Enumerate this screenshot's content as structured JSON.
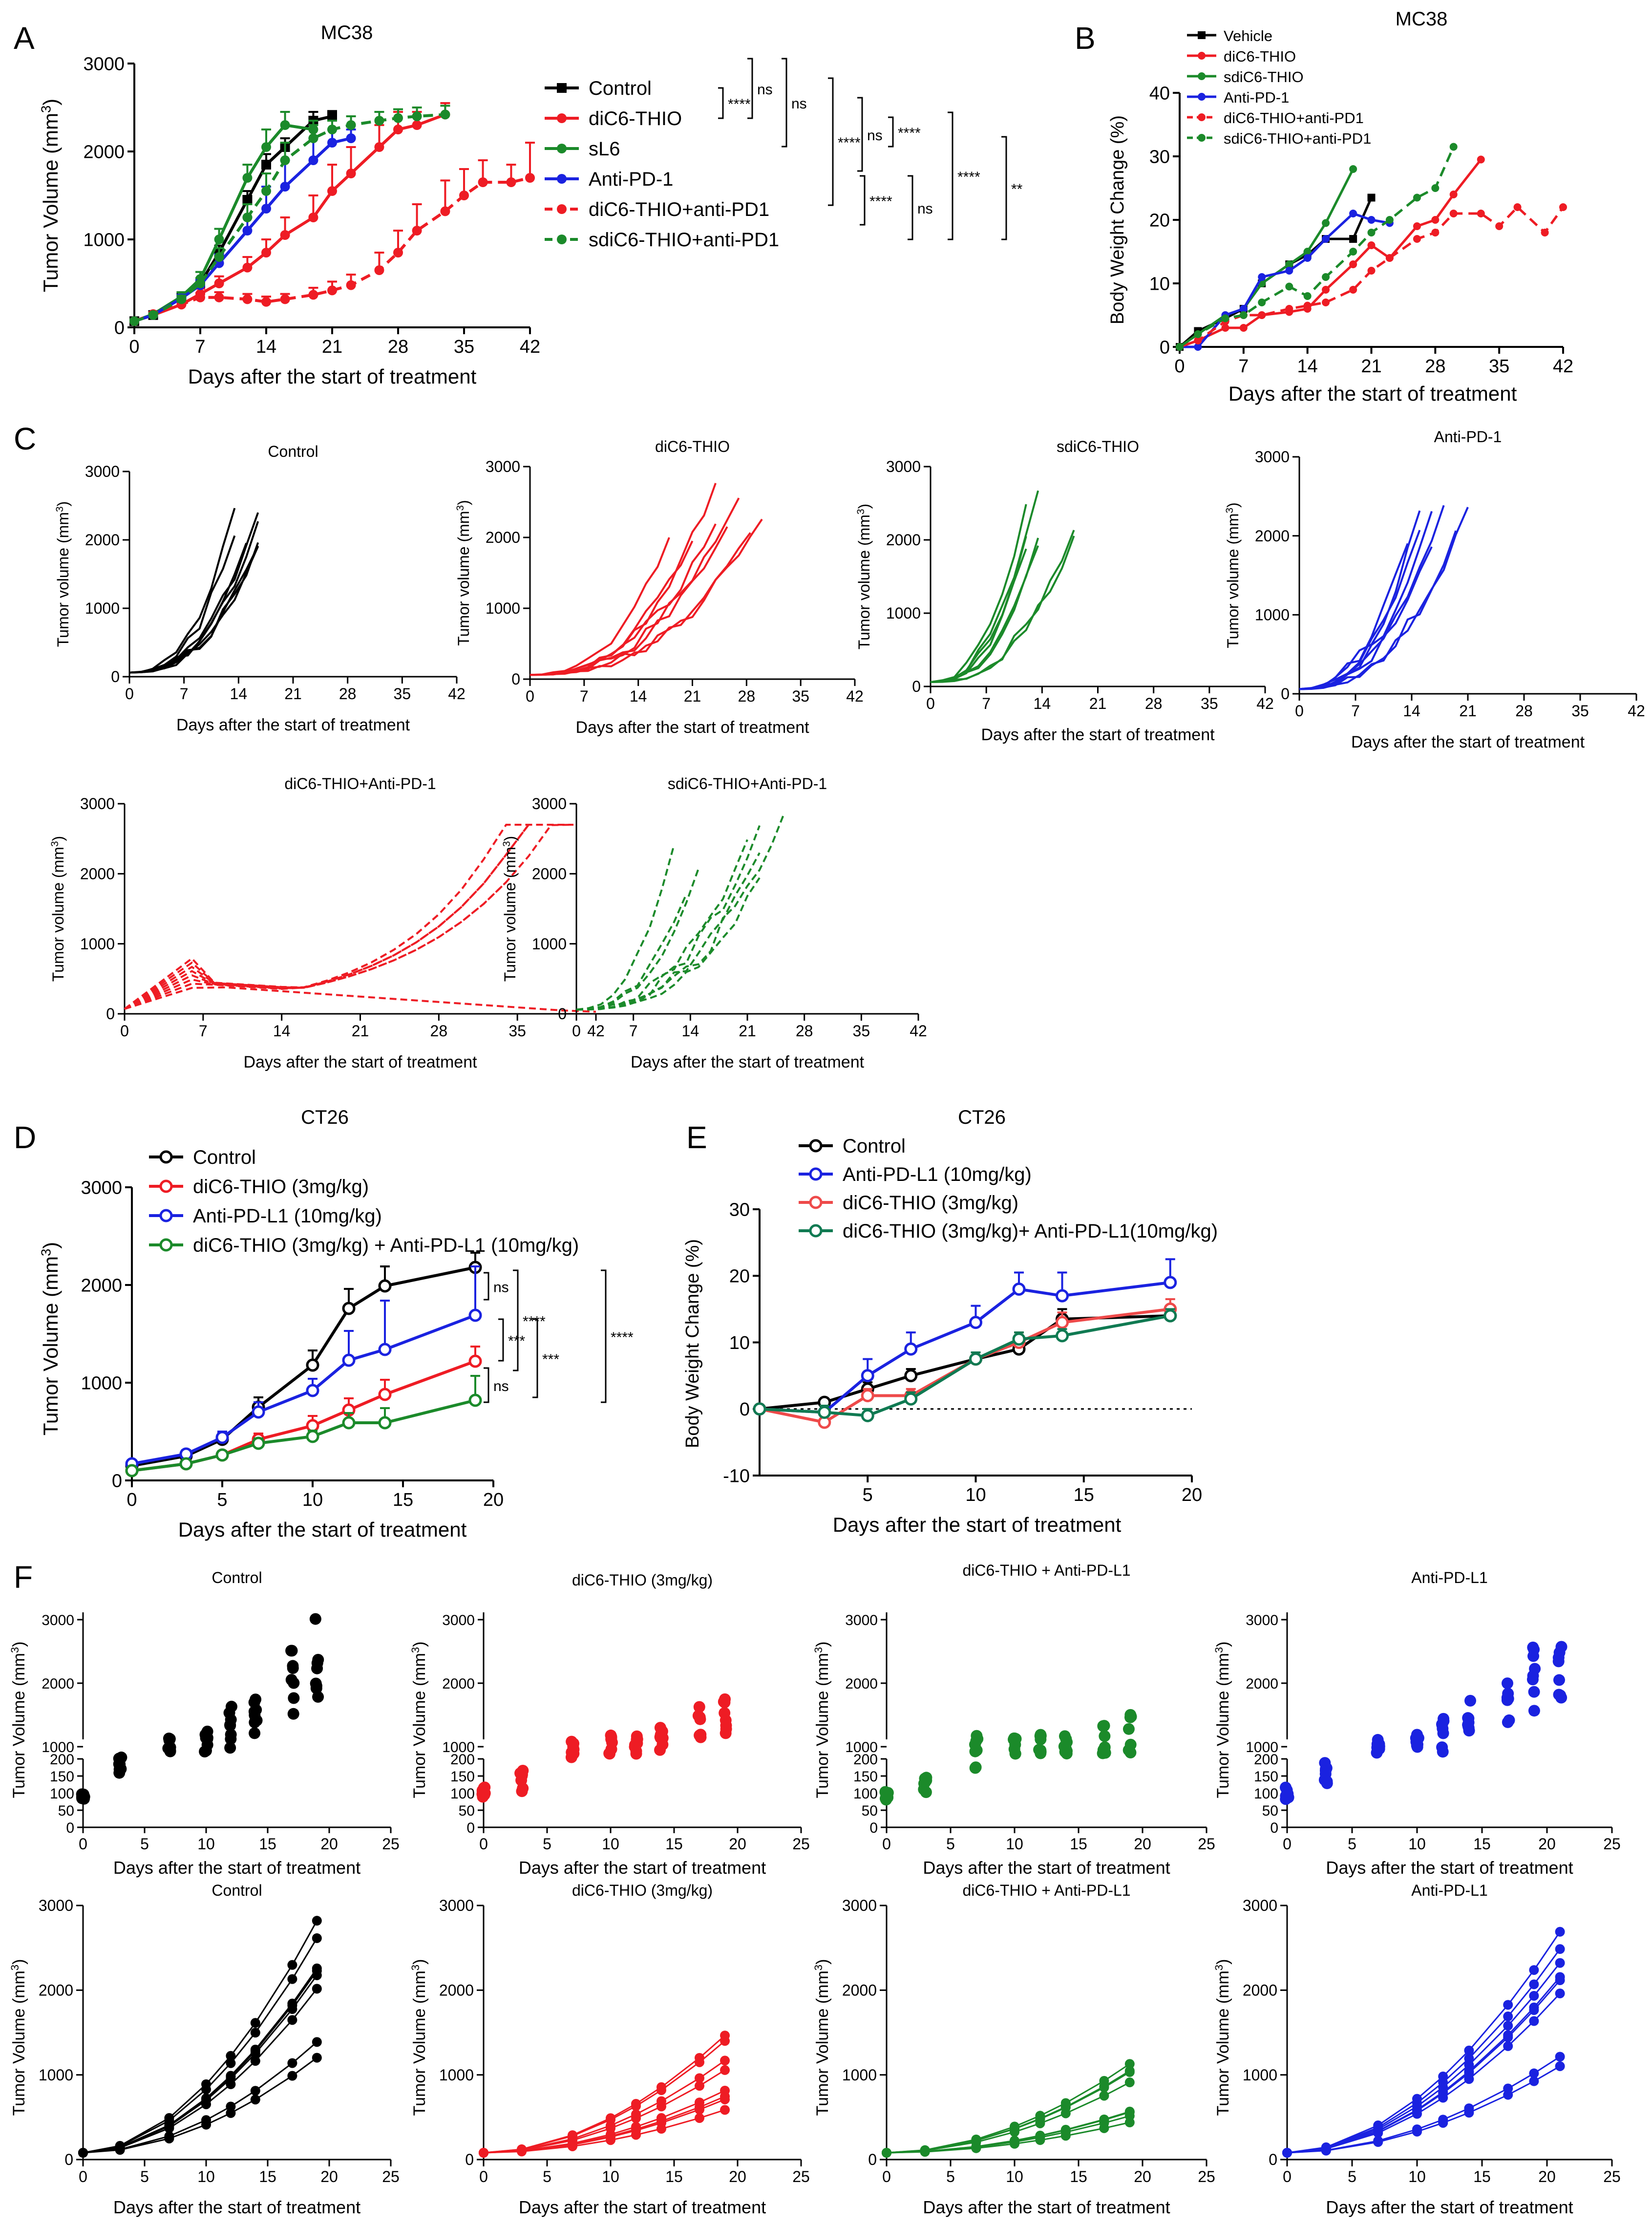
{
  "colors": {
    "black": "#000000",
    "red": "#ee1c24",
    "green": "#1b8a2a",
    "blue": "#1a22e0",
    "teal": "#107a52",
    "lightred": "#ee4a4a"
  },
  "common": {
    "xlabel": "Days after the start of treatment"
  },
  "chart_data": [
    {
      "panel": "A",
      "type": "line",
      "title": "MC38",
      "ylabel": "Tumor Volume (mm³)",
      "xlabel": "Days after the start of treatment",
      "xlim": [
        0,
        42
      ],
      "ylim": [
        0,
        3000
      ],
      "xticks": [
        0,
        7,
        14,
        21,
        28,
        35,
        42
      ],
      "yticks": [
        0,
        1000,
        2000,
        3000
      ],
      "series": [
        {
          "name": "Control",
          "color": "#000000",
          "marker": "square",
          "dashed": false,
          "x": [
            0,
            2,
            5,
            7,
            9,
            12,
            14,
            16,
            19,
            21
          ],
          "y": [
            70,
            140,
            340,
            500,
            850,
            1450,
            1850,
            2050,
            2350,
            2400
          ],
          "err": [
            20,
            20,
            40,
            50,
            80,
            100,
            120,
            100,
            100,
            60
          ]
        },
        {
          "name": "diC6-THIO",
          "color": "#ee1c24",
          "marker": "circle",
          "dashed": false,
          "x": [
            0,
            2,
            5,
            7,
            9,
            12,
            14,
            16,
            19,
            21,
            23,
            26,
            28,
            30,
            33
          ],
          "y": [
            70,
            140,
            260,
            380,
            500,
            680,
            850,
            1050,
            1250,
            1550,
            1750,
            2050,
            2250,
            2300,
            2420
          ],
          "err": [
            20,
            20,
            40,
            60,
            80,
            120,
            150,
            200,
            250,
            300,
            300,
            250,
            200,
            150,
            130
          ]
        },
        {
          "name": "sL6",
          "color": "#1b8a2a",
          "marker": "circle",
          "dashed": false,
          "x": [
            0,
            2,
            5,
            7,
            9,
            12,
            14,
            16,
            19
          ],
          "y": [
            70,
            150,
            350,
            550,
            1000,
            1700,
            2050,
            2300,
            2250
          ],
          "err": [
            20,
            20,
            50,
            80,
            120,
            150,
            200,
            150,
            100
          ]
        },
        {
          "name": "Anti-PD-1",
          "color": "#1a22e0",
          "marker": "circle",
          "dashed": false,
          "x": [
            0,
            2,
            5,
            7,
            9,
            12,
            14,
            16,
            19,
            21,
            23
          ],
          "y": [
            70,
            140,
            330,
            480,
            730,
            1100,
            1350,
            1600,
            1900,
            2100,
            2150
          ],
          "err": [
            20,
            20,
            40,
            60,
            100,
            150,
            250,
            300,
            250,
            150,
            100
          ]
        },
        {
          "name": "diC6-THIO+anti-PD1",
          "color": "#ee1c24",
          "marker": "circle",
          "dashed": true,
          "x": [
            0,
            2,
            5,
            7,
            9,
            12,
            14,
            16,
            19,
            21,
            23,
            26,
            28,
            30,
            33,
            35,
            37,
            40,
            42
          ],
          "y": [
            70,
            150,
            260,
            340,
            340,
            320,
            290,
            320,
            370,
            420,
            480,
            650,
            850,
            1100,
            1320,
            1500,
            1650,
            1650,
            1700
          ],
          "err": [
            20,
            20,
            40,
            50,
            60,
            60,
            60,
            60,
            80,
            100,
            120,
            200,
            250,
            300,
            350,
            300,
            250,
            200,
            400
          ]
        },
        {
          "name": "sdiC6-THIO+anti-PD1",
          "color": "#1b8a2a",
          "marker": "circle",
          "dashed": true,
          "x": [
            0,
            2,
            5,
            7,
            9,
            12,
            14,
            16,
            19,
            21,
            23,
            26,
            28,
            30,
            33
          ],
          "y": [
            70,
            140,
            320,
            500,
            800,
            1250,
            1550,
            1900,
            2150,
            2250,
            2300,
            2350,
            2380,
            2400,
            2420
          ],
          "err": [
            20,
            20,
            40,
            60,
            100,
            150,
            200,
            200,
            150,
            100,
            100,
            100,
            100,
            100,
            100
          ]
        }
      ],
      "significance": [
        {
          "label": "****",
          "pair": "Control vs diC6-THIO"
        },
        {
          "label": "ns",
          "pair": "Control vs sL6"
        },
        {
          "label": "ns",
          "pair": "Control vs Anti-PD-1"
        },
        {
          "label": "****",
          "pair": "Control vs diC6-THIO+anti-PD1"
        },
        {
          "label": "ns",
          "pair": "diC6-THIO vs sL6"
        },
        {
          "label": "****",
          "pair": "sL6 vs Anti-PD-1"
        },
        {
          "label": "****",
          "pair": "diC6-THIO vs diC6-THIO+anti-PD1"
        },
        {
          "label": "ns",
          "pair": "Anti-PD-1 vs diC6-THIO+anti-PD1"
        },
        {
          "label": "****",
          "pair": "sL6 vs sdiC6-THIO+anti-PD1"
        },
        {
          "label": "**",
          "pair": "diC6-THIO+anti-PD1 vs sdiC6-THIO+anti-PD1"
        }
      ]
    },
    {
      "panel": "B",
      "type": "line",
      "title": "MC38",
      "ylabel": "Body Weight Change (%)",
      "xlabel": "Days after the start of treatment",
      "xlim": [
        0,
        42
      ],
      "ylim": [
        0,
        40
      ],
      "xticks": [
        0,
        7,
        14,
        21,
        28,
        35,
        42
      ],
      "yticks": [
        0,
        10,
        20,
        30,
        40
      ],
      "series": [
        {
          "name": "Vehicle",
          "color": "#000000",
          "marker": "square",
          "dashed": false,
          "x": [
            0,
            2,
            5,
            7,
            9,
            12,
            14,
            16,
            19,
            21
          ],
          "y": [
            0,
            2.5,
            4.5,
            6,
            10,
            13,
            14.5,
            17,
            17,
            23.5
          ]
        },
        {
          "name": "diC6-THIO",
          "color": "#ee1c24",
          "marker": "circle",
          "dashed": false,
          "x": [
            0,
            2,
            5,
            7,
            9,
            12,
            14,
            16,
            19,
            21,
            23,
            26,
            28,
            30,
            33
          ],
          "y": [
            0,
            1,
            3,
            3,
            5,
            5.5,
            6,
            9,
            13,
            16,
            14,
            19,
            20,
            24,
            29.5
          ]
        },
        {
          "name": "sdiC6-THIO",
          "color": "#1b8a2a",
          "marker": "circle",
          "dashed": false,
          "x": [
            0,
            2,
            5,
            7,
            9,
            12,
            14,
            16,
            19
          ],
          "y": [
            0,
            2,
            5,
            6,
            10,
            13,
            15,
            19.5,
            28
          ]
        },
        {
          "name": "Anti-PD-1",
          "color": "#1a22e0",
          "marker": "circle",
          "dashed": false,
          "x": [
            0,
            2,
            5,
            7,
            9,
            12,
            14,
            16,
            19,
            21,
            23
          ],
          "y": [
            0,
            0,
            5,
            6,
            11,
            12,
            14,
            17,
            21,
            20,
            19.5
          ]
        },
        {
          "name": "diC6-THIO+anti-PD1",
          "color": "#ee1c24",
          "marker": "circle",
          "dashed": true,
          "x": [
            0,
            2,
            5,
            7,
            9,
            12,
            14,
            16,
            19,
            21,
            23,
            26,
            28,
            30,
            33,
            35,
            37,
            40,
            42
          ],
          "y": [
            0,
            1,
            4,
            5,
            5,
            6,
            6.5,
            7,
            9,
            12,
            14,
            17,
            18,
            21,
            21,
            19,
            22,
            18,
            22
          ]
        },
        {
          "name": "sdiC6-THIO+anti-PD1",
          "color": "#1b8a2a",
          "marker": "circle",
          "dashed": true,
          "x": [
            0,
            2,
            5,
            7,
            9,
            12,
            14,
            16,
            19,
            21,
            23,
            26,
            28,
            30
          ],
          "y": [
            0,
            2,
            4.5,
            5,
            7,
            9.5,
            8,
            11,
            15,
            18,
            20,
            23.5,
            25,
            31.5
          ]
        }
      ]
    },
    {
      "panel": "C",
      "type": "line",
      "subtitles": [
        "Control",
        "diC6-THIO",
        "sdiC6-THIO",
        "Anti-PD-1",
        "diC6-THIO+Anti-PD-1",
        "sdiC6-THIO+Anti-PD-1"
      ],
      "ylabel": "Tumor volume (mm³)",
      "xlabel": "Days after the start of treatment",
      "xlim": [
        0,
        42
      ],
      "ylim": [
        0,
        3000
      ],
      "description": "individual mouse tumor growth curves per group"
    },
    {
      "panel": "D",
      "type": "line",
      "title": "CT26",
      "ylabel": "Tumor Volume (mm³)",
      "xlabel": "Days after the start of treatment",
      "xlim": [
        0,
        20
      ],
      "ylim": [
        0,
        3000
      ],
      "xticks": [
        0,
        5,
        10,
        15,
        20
      ],
      "yticks": [
        0,
        1000,
        2000,
        3000
      ],
      "series": [
        {
          "name": "Control",
          "color": "#000000",
          "x": [
            0,
            3,
            5,
            7,
            10,
            12,
            14,
            19
          ],
          "y": [
            150,
            250,
            420,
            750,
            1180,
            1760,
            1990,
            2180
          ],
          "err": [
            30,
            40,
            60,
            100,
            150,
            200,
            200,
            150
          ]
        },
        {
          "name": "diC6-THIO (3mg/kg)",
          "color": "#ee1c24",
          "x": [
            0,
            3,
            5,
            7,
            10,
            12,
            14,
            19
          ],
          "y": [
            100,
            170,
            260,
            420,
            560,
            720,
            880,
            1220
          ],
          "err": [
            20,
            30,
            40,
            60,
            100,
            120,
            150,
            150
          ]
        },
        {
          "name": "Anti-PD-L1 (10mg/kg)",
          "color": "#1a22e0",
          "x": [
            0,
            3,
            5,
            7,
            10,
            12,
            14,
            19
          ],
          "y": [
            170,
            270,
            440,
            700,
            920,
            1230,
            1340,
            1690
          ],
          "err": [
            30,
            40,
            60,
            100,
            120,
            300,
            500,
            500
          ]
        },
        {
          "name": "diC6-THIO (3mg/kg) + Anti-PD-L1 (10mg/kg)",
          "color": "#1b8a2a",
          "x": [
            0,
            3,
            5,
            7,
            10,
            12,
            14,
            19
          ],
          "y": [
            100,
            170,
            260,
            380,
            450,
            590,
            590,
            820
          ],
          "err": [
            20,
            30,
            40,
            50,
            60,
            100,
            150,
            250
          ]
        }
      ],
      "significance": [
        "ns",
        "***",
        "***",
        "****",
        "****",
        "ns"
      ]
    },
    {
      "panel": "E",
      "type": "line",
      "title": "CT26",
      "ylabel": "Body Weight Change (%)",
      "xlabel": "Days after the start of treatment",
      "xlim": [
        0,
        20
      ],
      "ylim": [
        -10,
        30
      ],
      "xticks": [
        5,
        10,
        15,
        20
      ],
      "yticks": [
        -10,
        0,
        10,
        20,
        30
      ],
      "series": [
        {
          "name": "Control",
          "color": "#000000",
          "x": [
            0,
            3,
            5,
            7,
            10,
            12,
            14,
            19
          ],
          "y": [
            0,
            1,
            3,
            5,
            7.5,
            9,
            13.5,
            14
          ],
          "err": [
            0,
            0.5,
            1,
            1,
            1,
            1.5,
            1.5,
            1.5
          ]
        },
        {
          "name": "Anti-PD-L1 (10mg/kg)",
          "color": "#1a22e0",
          "x": [
            0,
            3,
            5,
            7,
            10,
            12,
            14,
            19
          ],
          "y": [
            0,
            -0.5,
            5,
            9,
            13,
            18,
            17,
            19
          ],
          "err": [
            0,
            0.5,
            2.5,
            2.5,
            2.5,
            2.5,
            3.5,
            3.5
          ]
        },
        {
          "name": "diC6-THIO (3mg/kg)",
          "color": "#ee4a4a",
          "x": [
            0,
            3,
            5,
            7,
            10,
            12,
            14,
            19
          ],
          "y": [
            0,
            -2,
            2,
            2,
            7.5,
            10,
            13,
            15
          ],
          "err": [
            0,
            1,
            1,
            1,
            1,
            1.5,
            1.5,
            1.5
          ]
        },
        {
          "name": "diC6-THIO (3mg/kg)+ Anti-PD-L1(10mg/kg)",
          "color": "#107a52",
          "x": [
            0,
            3,
            5,
            7,
            10,
            12,
            14,
            19
          ],
          "y": [
            0,
            -0.5,
            -1,
            1.5,
            7.5,
            10.5,
            11,
            14
          ],
          "err": [
            0,
            1,
            1,
            1,
            1,
            1,
            1,
            1
          ]
        }
      ]
    },
    {
      "panel": "F",
      "type": "scatter",
      "subtitles": [
        "Control",
        "diC6-THIO (3mg/kg)",
        "diC6-THIO + Anti-PD-L1",
        "Anti-PD-L1"
      ],
      "ylabel": "Tumor Volume (mm³)",
      "xlabel": "Days after the start of treatment",
      "xlim": [
        0,
        25
      ],
      "ylim": [
        0,
        3000
      ],
      "xticks": [
        0,
        5,
        10,
        15,
        20,
        25
      ],
      "broken_yticks_low": [
        0,
        50,
        100,
        150,
        200
      ],
      "broken_yticks_high": [
        1000,
        2000,
        3000
      ],
      "description": "individual tumor volumes per day (dot plots, top row) and per-mouse curves (bottom row)"
    }
  ]
}
